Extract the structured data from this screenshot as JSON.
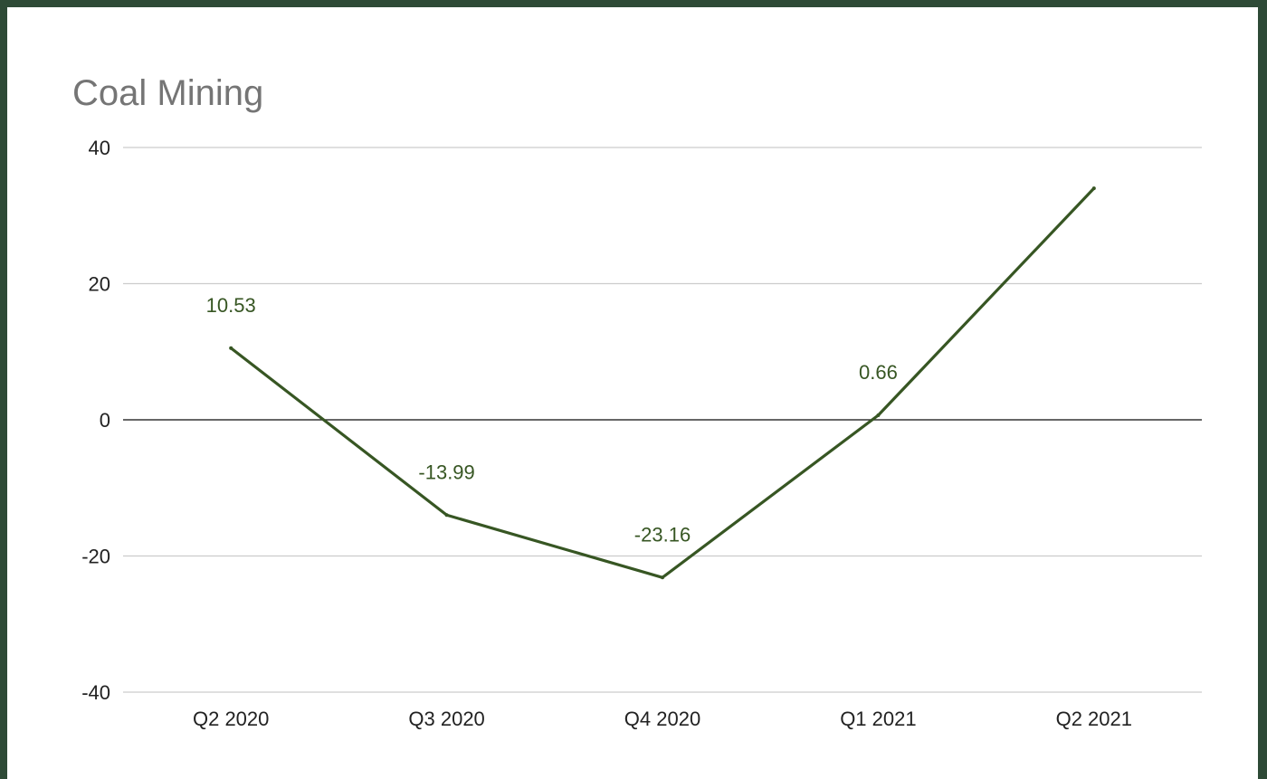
{
  "chart_data": {
    "type": "line",
    "title": "Coal Mining",
    "xlabel": "",
    "ylabel": "",
    "categories": [
      "Q2 2020",
      "Q3 2020",
      "Q4 2020",
      "Q1 2021",
      "Q2 2021"
    ],
    "series": [
      {
        "values": [
          10.53,
          -13.99,
          -23.16,
          0.66,
          34
        ],
        "data_labels": [
          "10.53",
          "-13.99",
          "-23.16",
          "0.66",
          null
        ]
      }
    ],
    "ylim": [
      -40,
      40
    ],
    "yticks": [
      -40,
      -20,
      0,
      20,
      40
    ],
    "ytick_labels": [
      "-40",
      "-20",
      "0",
      "20",
      "40"
    ],
    "grid": true,
    "legend": "none",
    "colors": {
      "line": "#375623",
      "label": "#375623",
      "gridline": "#cccccc",
      "zero_line": "#333333",
      "frame": "#2e4a36"
    }
  }
}
